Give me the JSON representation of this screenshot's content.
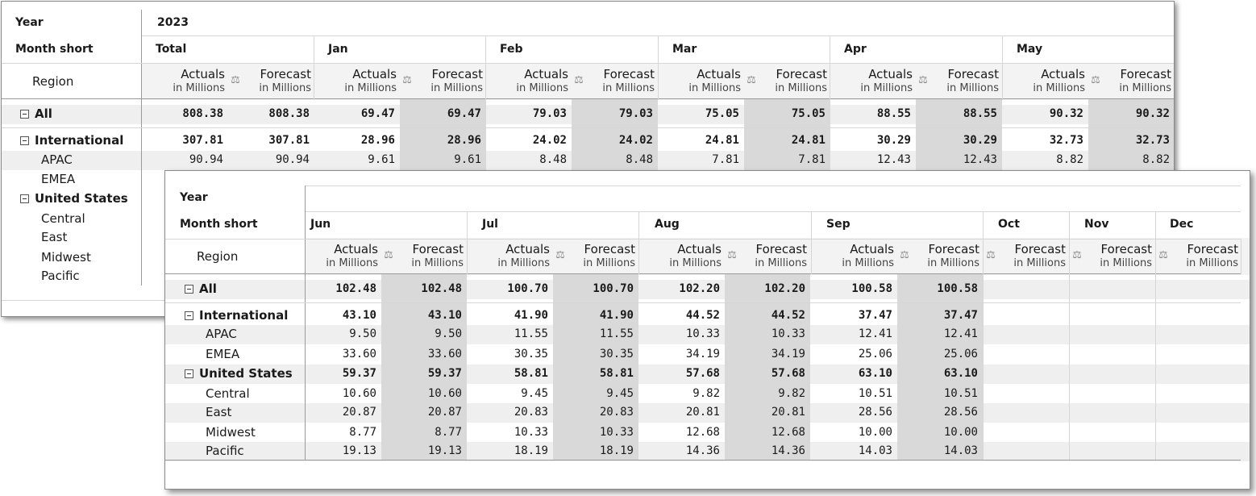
{
  "back": {
    "year_label": "Year",
    "year_value": "2023",
    "month_label": "Month short",
    "region_label": "Region",
    "measure_actuals": "Actuals",
    "measure_forecast": "Forecast",
    "unit": "in Millions",
    "scale_glyph": "⚖",
    "months": [
      "Total",
      "Jan",
      "Feb",
      "Mar",
      "Apr",
      "May"
    ],
    "rows": [
      {
        "label": "All",
        "level": 0,
        "toggle": true,
        "bold": true,
        "values": [
          "808.38",
          "808.38",
          "69.47",
          "69.47",
          "79.03",
          "79.03",
          "75.05",
          "75.05",
          "88.55",
          "88.55",
          "90.32",
          "90.32"
        ]
      },
      {
        "label": "International",
        "level": 0,
        "toggle": true,
        "bold": true,
        "values": [
          "307.81",
          "307.81",
          "28.96",
          "28.96",
          "24.02",
          "24.02",
          "24.81",
          "24.81",
          "30.29",
          "30.29",
          "32.73",
          "32.73"
        ]
      },
      {
        "label": "APAC",
        "level": 1,
        "toggle": false,
        "bold": false,
        "values": [
          "90.94",
          "90.94",
          "9.61",
          "9.61",
          "8.48",
          "8.48",
          "7.81",
          "7.81",
          "12.43",
          "12.43",
          "8.82",
          "8.82"
        ]
      },
      {
        "label": "EMEA",
        "level": 1,
        "toggle": false,
        "bold": false,
        "values": []
      },
      {
        "label": "United States",
        "level": 0,
        "toggle": true,
        "bold": true,
        "values": []
      },
      {
        "label": "Central",
        "level": 1,
        "toggle": false,
        "bold": false,
        "values": []
      },
      {
        "label": "East",
        "level": 1,
        "toggle": false,
        "bold": false,
        "values": []
      },
      {
        "label": "Midwest",
        "level": 1,
        "toggle": false,
        "bold": false,
        "values": []
      },
      {
        "label": "Pacific",
        "level": 1,
        "toggle": false,
        "bold": false,
        "values": []
      }
    ]
  },
  "front": {
    "year_label": "Year",
    "month_label": "Month short",
    "region_label": "Region",
    "measure_actuals": "Actuals",
    "measure_forecast": "Forecast",
    "unit": "in Millions",
    "scale_glyph": "⚖",
    "months": [
      "Jun",
      "Jul",
      "Aug",
      "Sep"
    ],
    "forecast_only_months": [
      "Oct",
      "Nov",
      "Dec"
    ],
    "rows": [
      {
        "label": "All",
        "level": 0,
        "toggle": true,
        "bold": true,
        "values": [
          "102.48",
          "102.48",
          "100.70",
          "100.70",
          "102.20",
          "102.20",
          "100.58",
          "100.58"
        ]
      },
      {
        "label": "International",
        "level": 0,
        "toggle": true,
        "bold": true,
        "values": [
          "43.10",
          "43.10",
          "41.90",
          "41.90",
          "44.52",
          "44.52",
          "37.47",
          "37.47"
        ]
      },
      {
        "label": "APAC",
        "level": 1,
        "toggle": false,
        "bold": false,
        "values": [
          "9.50",
          "9.50",
          "11.55",
          "11.55",
          "10.33",
          "10.33",
          "12.41",
          "12.41"
        ]
      },
      {
        "label": "EMEA",
        "level": 1,
        "toggle": false,
        "bold": false,
        "values": [
          "33.60",
          "33.60",
          "30.35",
          "30.35",
          "34.19",
          "34.19",
          "25.06",
          "25.06"
        ]
      },
      {
        "label": "United States",
        "level": 0,
        "toggle": true,
        "bold": true,
        "values": [
          "59.37",
          "59.37",
          "58.81",
          "58.81",
          "57.68",
          "57.68",
          "63.10",
          "63.10"
        ]
      },
      {
        "label": "Central",
        "level": 1,
        "toggle": false,
        "bold": false,
        "values": [
          "10.60",
          "10.60",
          "9.45",
          "9.45",
          "9.82",
          "9.82",
          "10.51",
          "10.51"
        ]
      },
      {
        "label": "East",
        "level": 1,
        "toggle": false,
        "bold": false,
        "values": [
          "20.87",
          "20.87",
          "20.83",
          "20.83",
          "20.81",
          "20.81",
          "28.56",
          "28.56"
        ]
      },
      {
        "label": "Midwest",
        "level": 1,
        "toggle": false,
        "bold": false,
        "values": [
          "8.77",
          "8.77",
          "10.33",
          "10.33",
          "12.68",
          "12.68",
          "10.00",
          "10.00"
        ]
      },
      {
        "label": "Pacific",
        "level": 1,
        "toggle": false,
        "bold": false,
        "values": [
          "19.13",
          "19.13",
          "18.19",
          "18.19",
          "14.36",
          "14.36",
          "14.03",
          "14.03"
        ]
      }
    ]
  },
  "colors": {
    "forecast_shade": "#d9d9d9",
    "band": "#efefef",
    "grid_line": "#d6d6d6",
    "border": "#8a8a8a"
  }
}
